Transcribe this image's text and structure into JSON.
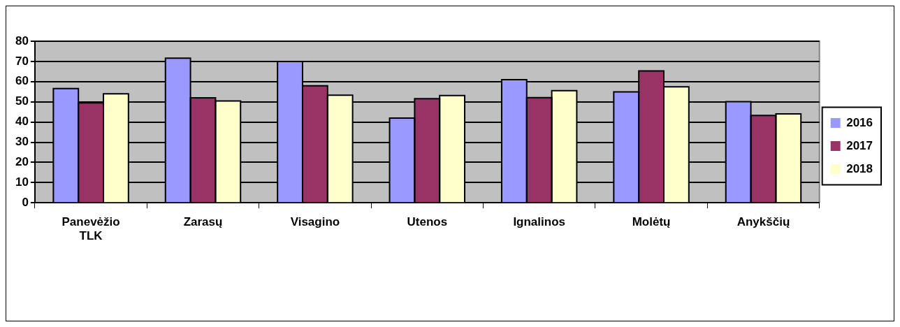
{
  "chart_data": {
    "type": "bar",
    "categories": [
      "Panevėžio TLK",
      "Zarasų",
      "Visagino",
      "Utenos",
      "Ignalinos",
      "Molėtų",
      "Anykščių"
    ],
    "series": [
      {
        "name": "2016",
        "color": "#9999ff",
        "values": [
          56.6,
          71.6,
          70,
          41.9,
          61,
          54.9,
          50.1
        ]
      },
      {
        "name": "2017",
        "color": "#993366",
        "values": [
          49.5,
          52,
          57.9,
          51.5,
          52.1,
          65.3,
          43.2
        ]
      },
      {
        "name": "2018",
        "color": "#ffffcc",
        "values": [
          54,
          50.4,
          53.3,
          53.1,
          55.5,
          57.4,
          44
        ]
      }
    ],
    "ylim": [
      0,
      80
    ],
    "yticks": [
      0,
      10,
      20,
      30,
      40,
      50,
      60,
      70,
      80
    ],
    "grid": "y",
    "legend": "right"
  }
}
